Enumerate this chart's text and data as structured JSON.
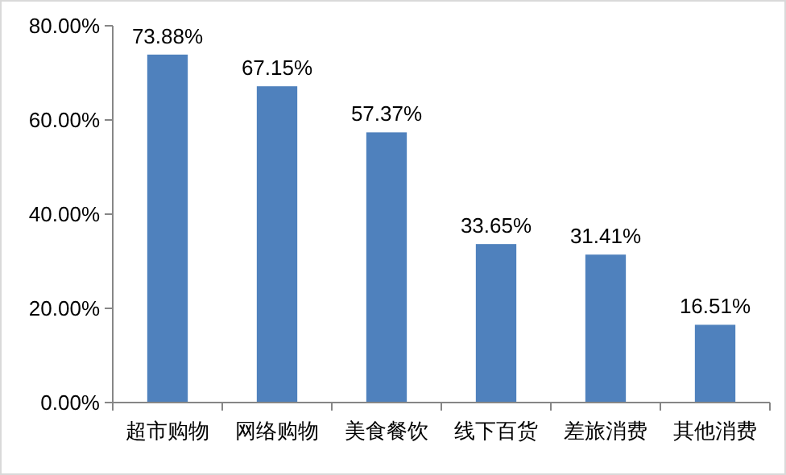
{
  "chart_data": {
    "type": "bar",
    "categories": [
      "超市购物",
      "网络购物",
      "美食餐饮",
      "线下百货",
      "差旅消费",
      "其他消费"
    ],
    "values": [
      73.88,
      67.15,
      57.37,
      33.65,
      31.41,
      16.51
    ],
    "value_labels": [
      "73.88%",
      "67.15%",
      "57.37%",
      "33.65%",
      "31.41%",
      "16.51%"
    ],
    "color": "#4f81bd",
    "ylim": [
      0,
      80
    ],
    "yticks": [
      {
        "value": 0,
        "label": "0.00%"
      },
      {
        "value": 20,
        "label": "20.00%"
      },
      {
        "value": 40,
        "label": "40.00%"
      },
      {
        "value": 60,
        "label": "60.00%"
      },
      {
        "value": 80,
        "label": "80.00%"
      }
    ],
    "grid": false
  }
}
